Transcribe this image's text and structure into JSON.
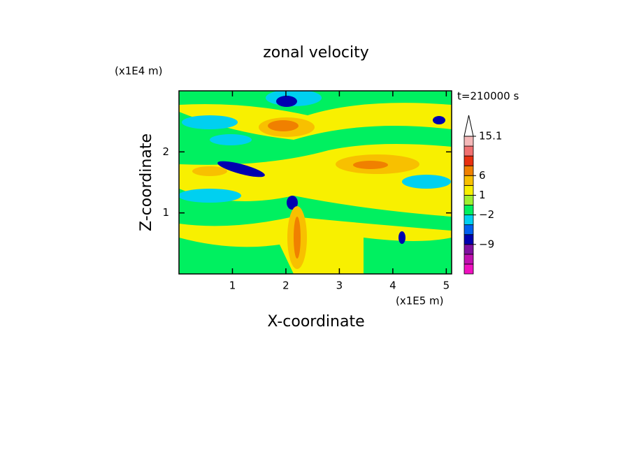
{
  "chart_data": {
    "type": "contour",
    "title": "zonal velocity",
    "x_label": "X-coordinate",
    "y_label": "Z-coordinate",
    "x_unit": "(x1E5 m)",
    "y_unit": "(x1E4 m)",
    "time_label": "t=210000 s",
    "xlim": [
      0,
      5.1
    ],
    "ylim": [
      0,
      3
    ],
    "xticks": [
      1,
      2,
      3,
      4,
      5
    ],
    "yticks": [
      1,
      2
    ],
    "colorbar": {
      "colors": [
        "#f010c0",
        "#c010b0",
        "#8010a0",
        "#0000b0",
        "#0060f0",
        "#00d0f0",
        "#00f060",
        "#a0f030",
        "#f8f000",
        "#f8c000",
        "#f08000",
        "#e83010",
        "#f07070",
        "#f4b8b8"
      ],
      "levels": [
        null,
        null,
        null,
        {
          "value": -9,
          "label": "−9"
        },
        null,
        null,
        {
          "value": -2,
          "label": "−2"
        },
        null,
        1,
        null,
        6,
        null,
        null,
        null,
        15.1
      ]
    }
  }
}
